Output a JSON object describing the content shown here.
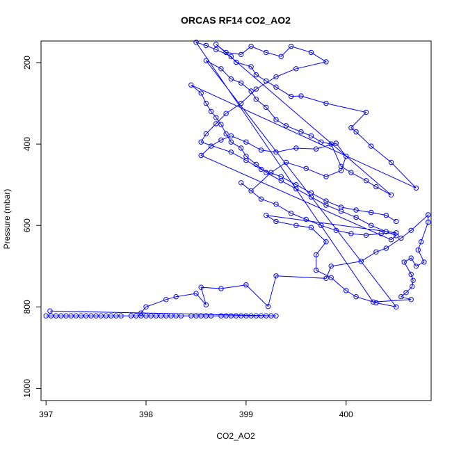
{
  "chart_data": {
    "type": "scatter",
    "title": "ORCAS RF14 CO2_AO2",
    "xlabel": "CO2_AO2",
    "ylabel": "Pressure (mbar)",
    "xlim": [
      396.95,
      400.85
    ],
    "ylim": [
      1030,
      147
    ],
    "y_reversed": true,
    "x_ticks": [
      397,
      398,
      399,
      400
    ],
    "y_ticks": [
      200,
      400,
      600,
      800,
      1000
    ],
    "grid": false,
    "legend": "none",
    "series_color": "#0000ff",
    "marker": "open-circle",
    "points": [
      [
        397.0,
        822
      ],
      [
        397.05,
        822
      ],
      [
        397.1,
        822
      ],
      [
        397.15,
        822
      ],
      [
        397.2,
        822
      ],
      [
        397.25,
        822
      ],
      [
        397.3,
        822
      ],
      [
        397.35,
        822
      ],
      [
        397.4,
        822
      ],
      [
        397.45,
        822
      ],
      [
        397.5,
        822
      ],
      [
        397.55,
        822
      ],
      [
        397.6,
        822
      ],
      [
        397.65,
        822
      ],
      [
        397.7,
        822
      ],
      [
        397.75,
        822
      ],
      [
        397.85,
        822
      ],
      [
        397.9,
        822
      ],
      [
        397.95,
        822
      ],
      [
        398.0,
        822
      ],
      [
        398.05,
        822
      ],
      [
        398.1,
        822
      ],
      [
        398.15,
        822
      ],
      [
        398.2,
        822
      ],
      [
        398.25,
        822
      ],
      [
        398.3,
        822
      ],
      [
        398.35,
        822
      ],
      [
        398.45,
        822
      ],
      [
        398.5,
        822
      ],
      [
        398.55,
        822
      ],
      [
        398.6,
        822
      ],
      [
        398.65,
        822
      ],
      [
        398.75,
        822
      ],
      [
        398.8,
        822
      ],
      [
        398.85,
        822
      ],
      [
        398.9,
        822
      ],
      [
        398.95,
        822
      ],
      [
        399.0,
        822
      ],
      [
        399.05,
        822
      ],
      [
        399.1,
        822
      ],
      [
        399.15,
        822
      ],
      [
        399.2,
        822
      ],
      [
        399.25,
        822
      ],
      [
        399.3,
        822
      ],
      [
        397.04,
        810
      ],
      [
        397.95,
        815
      ],
      [
        398.0,
        800
      ],
      [
        398.2,
        782
      ],
      [
        398.3,
        775
      ],
      [
        398.5,
        767
      ],
      [
        398.6,
        795
      ],
      [
        398.55,
        752
      ],
      [
        398.75,
        755
      ],
      [
        399.0,
        746
      ],
      [
        399.22,
        799
      ],
      [
        399.3,
        724
      ],
      [
        399.8,
        730
      ],
      [
        399.85,
        700
      ],
      [
        400.15,
        688
      ],
      [
        400.3,
        665
      ],
      [
        400.4,
        656
      ],
      [
        400.55,
        631
      ],
      [
        400.65,
        612
      ],
      [
        400.82,
        574
      ],
      [
        400.82,
        592
      ],
      [
        400.75,
        640
      ],
      [
        400.72,
        660
      ],
      [
        400.78,
        690
      ],
      [
        400.7,
        700
      ],
      [
        400.65,
        680
      ],
      [
        400.58,
        690
      ],
      [
        400.65,
        720
      ],
      [
        400.67,
        735
      ],
      [
        400.66,
        750
      ],
      [
        400.6,
        765
      ],
      [
        400.55,
        775
      ],
      [
        400.65,
        782
      ],
      [
        400.27,
        788
      ],
      [
        398.5,
        150
      ],
      [
        398.6,
        158
      ],
      [
        398.7,
        168
      ],
      [
        398.85,
        185
      ],
      [
        398.9,
        199
      ],
      [
        399.05,
        210
      ],
      [
        399.1,
        230
      ],
      [
        399.2,
        245
      ],
      [
        399.3,
        260
      ],
      [
        399.45,
        283
      ],
      [
        399.55,
        282
      ],
      [
        399.8,
        300
      ],
      [
        400.2,
        322
      ],
      [
        400.05,
        360
      ],
      [
        400.1,
        370
      ],
      [
        400.25,
        405
      ],
      [
        400.45,
        445
      ],
      [
        400.7,
        508
      ],
      [
        398.45,
        255
      ],
      [
        398.55,
        275
      ],
      [
        398.6,
        300
      ],
      [
        398.65,
        320
      ],
      [
        398.7,
        335
      ],
      [
        398.75,
        352
      ],
      [
        398.8,
        375
      ],
      [
        398.85,
        395
      ],
      [
        398.95,
        410
      ],
      [
        399.0,
        430
      ],
      [
        399.1,
        450
      ],
      [
        399.2,
        470
      ],
      [
        399.35,
        490
      ],
      [
        399.5,
        510
      ],
      [
        399.65,
        530
      ],
      [
        399.8,
        550
      ],
      [
        399.95,
        565
      ],
      [
        400.1,
        580
      ],
      [
        400.25,
        600
      ],
      [
        400.4,
        615
      ],
      [
        400.5,
        625
      ],
      [
        400.45,
        635
      ],
      [
        398.55,
        428
      ],
      [
        398.65,
        405
      ],
      [
        398.75,
        390
      ],
      [
        398.85,
        380
      ],
      [
        399.0,
        395
      ],
      [
        399.15,
        415
      ],
      [
        399.3,
        420
      ],
      [
        399.5,
        410
      ],
      [
        399.7,
        412
      ],
      [
        399.9,
        398
      ],
      [
        400.0,
        430
      ],
      [
        399.95,
        465
      ],
      [
        399.8,
        480
      ],
      [
        399.6,
        460
      ],
      [
        399.4,
        445
      ],
      [
        399.25,
        470
      ],
      [
        399.05,
        515
      ],
      [
        398.95,
        495
      ],
      [
        399.15,
        535
      ],
      [
        399.3,
        548
      ],
      [
        399.45,
        570
      ],
      [
        399.6,
        585
      ],
      [
        399.75,
        600
      ],
      [
        399.9,
        612
      ],
      [
        400.05,
        620
      ],
      [
        400.2,
        624
      ],
      [
        400.35,
        620
      ],
      [
        400.5,
        618
      ],
      [
        399.2,
        575
      ],
      [
        399.3,
        590
      ],
      [
        399.5,
        600
      ],
      [
        399.65,
        605
      ],
      [
        399.8,
        640
      ],
      [
        399.7,
        672
      ],
      [
        399.7,
        710
      ],
      [
        399.85,
        728
      ],
      [
        400.0,
        760
      ],
      [
        400.1,
        775
      ],
      [
        400.3,
        790
      ],
      [
        400.5,
        800
      ],
      [
        398.6,
        195
      ],
      [
        398.75,
        215
      ],
      [
        398.85,
        240
      ],
      [
        398.95,
        250
      ],
      [
        399.05,
        270
      ],
      [
        399.1,
        290
      ],
      [
        399.2,
        310
      ],
      [
        399.3,
        340
      ],
      [
        399.4,
        355
      ],
      [
        399.55,
        370
      ],
      [
        399.65,
        380
      ],
      [
        399.75,
        395
      ],
      [
        399.85,
        400
      ],
      [
        399.95,
        455
      ],
      [
        400.05,
        470
      ],
      [
        400.2,
        490
      ],
      [
        400.3,
        505
      ],
      [
        400.45,
        525
      ],
      [
        398.7,
        155
      ],
      [
        398.8,
        175
      ],
      [
        398.95,
        180
      ],
      [
        399.05,
        160
      ],
      [
        399.2,
        175
      ],
      [
        399.35,
        185
      ],
      [
        399.45,
        160
      ],
      [
        399.65,
        175
      ],
      [
        399.8,
        198
      ],
      [
        399.5,
        215
      ],
      [
        399.3,
        235
      ],
      [
        399.1,
        265
      ],
      [
        398.95,
        300
      ],
      [
        398.8,
        325
      ],
      [
        398.7,
        350
      ],
      [
        398.6,
        375
      ],
      [
        398.55,
        395
      ],
      [
        398.85,
        420
      ],
      [
        399.0,
        440
      ],
      [
        399.15,
        462
      ],
      [
        399.35,
        480
      ],
      [
        399.5,
        500
      ],
      [
        399.65,
        520
      ],
      [
        399.8,
        540
      ],
      [
        399.95,
        555
      ],
      [
        400.1,
        562
      ],
      [
        400.25,
        568
      ],
      [
        400.4,
        575
      ],
      [
        400.5,
        590
      ]
    ]
  }
}
